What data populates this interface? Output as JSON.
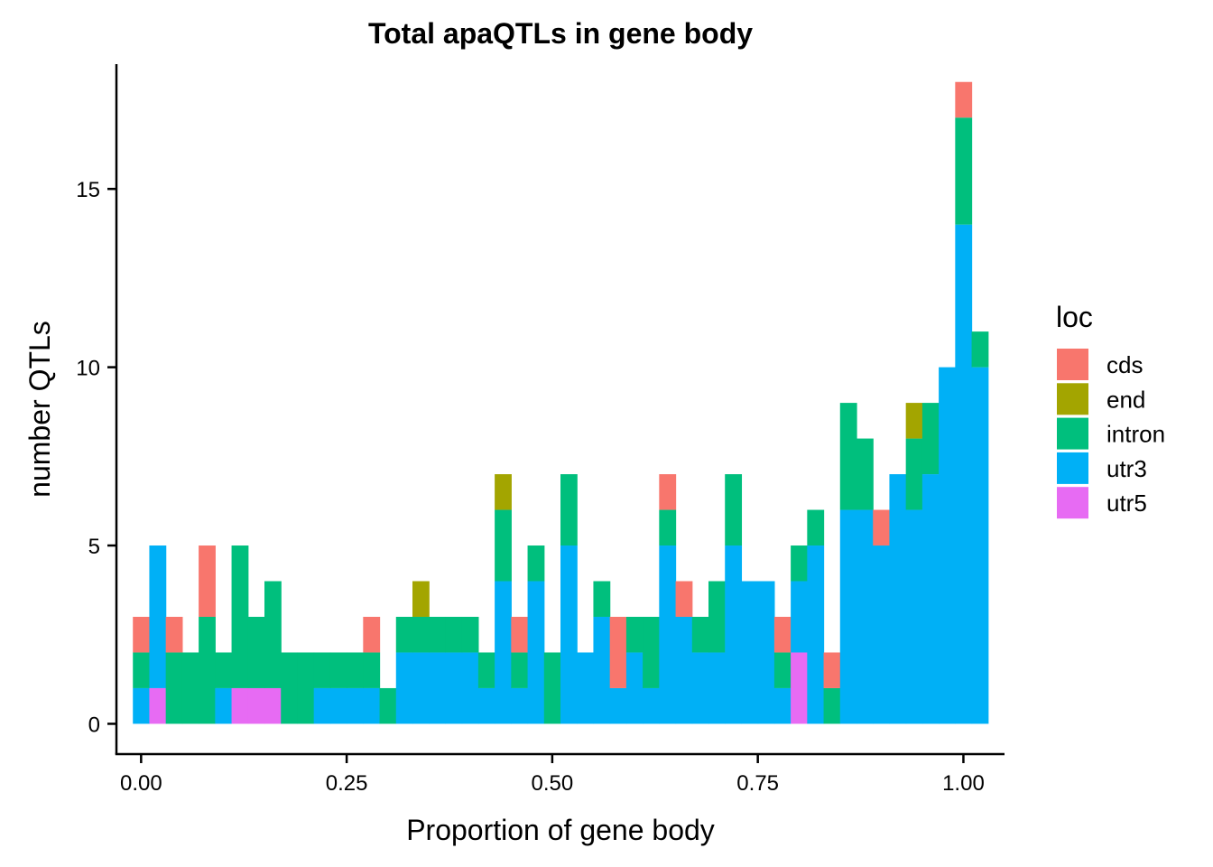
{
  "chart_data": {
    "type": "bar",
    "subtype": "stacked-histogram",
    "title": "Total apaQTLs in gene body",
    "xlabel": "Proportion of gene body",
    "ylabel": "number QTLs",
    "xlim": [
      -0.03,
      1.05
    ],
    "ylim": [
      -0.85,
      18.5
    ],
    "binwidth": 0.02,
    "x_ticks": [
      0,
      0.25,
      0.5,
      0.75,
      1.0
    ],
    "x_tick_labels": [
      "0.00",
      "0.25",
      "0.50",
      "0.75",
      "1.00"
    ],
    "y_ticks": [
      0,
      5,
      10,
      15
    ],
    "y_tick_labels": [
      "0",
      "5",
      "10",
      "15"
    ],
    "legend": {
      "title": "loc",
      "position": "right",
      "entries": [
        {
          "key": "cds",
          "label": "cds",
          "color": "#F8766D"
        },
        {
          "key": "end",
          "label": "end",
          "color": "#A3A500"
        },
        {
          "key": "intron",
          "label": "intron",
          "color": "#00BF7D"
        },
        {
          "key": "utr3",
          "label": "utr3",
          "color": "#00B0F6"
        },
        {
          "key": "utr5",
          "label": "utr5",
          "color": "#E76BF3"
        }
      ]
    },
    "stack_order": [
      "utr5",
      "utr3",
      "intron",
      "end",
      "cds"
    ],
    "bins": [
      {
        "x": 0.0,
        "utr3": 1,
        "intron": 1,
        "cds": 1
      },
      {
        "x": 0.02,
        "utr5": 1,
        "utr3": 4
      },
      {
        "x": 0.04,
        "intron": 2,
        "cds": 1
      },
      {
        "x": 0.06,
        "intron": 2
      },
      {
        "x": 0.08,
        "intron": 3,
        "cds": 2
      },
      {
        "x": 0.1,
        "utr3": 1,
        "intron": 1
      },
      {
        "x": 0.12,
        "utr5": 1,
        "intron": 4
      },
      {
        "x": 0.14,
        "utr5": 1,
        "intron": 2
      },
      {
        "x": 0.16,
        "utr5": 1,
        "intron": 3
      },
      {
        "x": 0.18,
        "intron": 2
      },
      {
        "x": 0.2,
        "intron": 2
      },
      {
        "x": 0.22,
        "utr3": 1,
        "intron": 1
      },
      {
        "x": 0.24,
        "utr3": 1,
        "intron": 1
      },
      {
        "x": 0.26,
        "utr3": 1,
        "intron": 1
      },
      {
        "x": 0.28,
        "utr3": 1,
        "intron": 1,
        "cds": 1
      },
      {
        "x": 0.3,
        "intron": 1
      },
      {
        "x": 0.32,
        "utr3": 2,
        "intron": 1
      },
      {
        "x": 0.34,
        "utr3": 2,
        "intron": 1,
        "end": 1
      },
      {
        "x": 0.36,
        "utr3": 2,
        "intron": 1
      },
      {
        "x": 0.38,
        "utr3": 2,
        "intron": 1
      },
      {
        "x": 0.4,
        "utr3": 2,
        "intron": 1
      },
      {
        "x": 0.42,
        "utr3": 1,
        "intron": 1
      },
      {
        "x": 0.44,
        "utr3": 4,
        "intron": 2,
        "end": 1
      },
      {
        "x": 0.46,
        "utr3": 1,
        "intron": 1,
        "cds": 1
      },
      {
        "x": 0.48,
        "utr3": 4,
        "intron": 1
      },
      {
        "x": 0.5,
        "intron": 2
      },
      {
        "x": 0.52,
        "utr3": 5,
        "intron": 2
      },
      {
        "x": 0.54,
        "utr3": 2
      },
      {
        "x": 0.56,
        "utr3": 3,
        "intron": 1
      },
      {
        "x": 0.58,
        "utr3": 1,
        "cds": 2
      },
      {
        "x": 0.6,
        "utr3": 2,
        "intron": 1
      },
      {
        "x": 0.62,
        "utr3": 1,
        "intron": 2
      },
      {
        "x": 0.64,
        "utr3": 5,
        "intron": 1,
        "cds": 1
      },
      {
        "x": 0.66,
        "utr3": 3,
        "cds": 1
      },
      {
        "x": 0.68,
        "utr3": 2,
        "intron": 1
      },
      {
        "x": 0.7,
        "utr3": 2,
        "intron": 2
      },
      {
        "x": 0.72,
        "utr3": 5,
        "intron": 2
      },
      {
        "x": 0.74,
        "utr3": 4
      },
      {
        "x": 0.76,
        "utr3": 4
      },
      {
        "x": 0.78,
        "utr3": 1,
        "intron": 1,
        "cds": 1
      },
      {
        "x": 0.8,
        "utr5": 2,
        "utr3": 2,
        "intron": 1
      },
      {
        "x": 0.82,
        "utr3": 5,
        "intron": 1
      },
      {
        "x": 0.84,
        "intron": 1,
        "cds": 1
      },
      {
        "x": 0.86,
        "utr3": 6,
        "intron": 3
      },
      {
        "x": 0.88,
        "utr3": 6,
        "intron": 2
      },
      {
        "x": 0.9,
        "utr3": 5,
        "cds": 1
      },
      {
        "x": 0.92,
        "utr3": 7
      },
      {
        "x": 0.94,
        "utr3": 6,
        "intron": 2,
        "end": 1
      },
      {
        "x": 0.96,
        "utr3": 7,
        "intron": 2
      },
      {
        "x": 0.98,
        "utr3": 10
      },
      {
        "x": 1.0,
        "utr3": 14,
        "intron": 3,
        "cds": 1
      },
      {
        "x": 1.02,
        "utr3": 10,
        "intron": 1
      }
    ]
  }
}
